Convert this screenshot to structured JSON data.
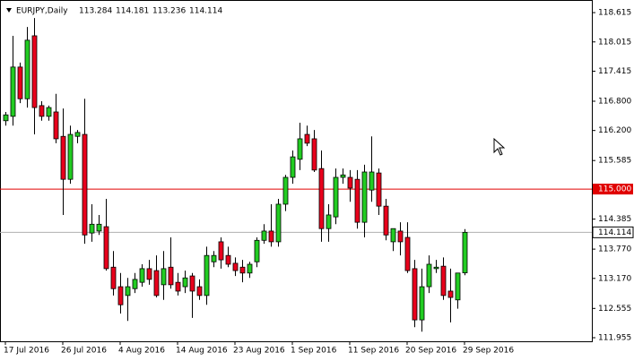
{
  "chart_data": {
    "type": "candlestick",
    "symbol": "EURJPY,Daily",
    "categories": [
      "17 Jul 2016",
      null,
      null,
      null,
      null,
      null,
      null,
      null,
      "26 Jul 2016",
      null,
      null,
      null,
      null,
      null,
      null,
      null,
      "4 Aug 2016",
      null,
      null,
      null,
      null,
      null,
      null,
      null,
      "14 Aug 2016",
      null,
      null,
      null,
      null,
      null,
      null,
      null,
      "23 Aug 2016",
      null,
      null,
      null,
      null,
      null,
      null,
      null,
      "1 Sep 2016",
      null,
      null,
      null,
      null,
      null,
      null,
      null,
      "11 Sep 2016",
      null,
      null,
      null,
      null,
      null,
      null,
      null,
      "20 Sep 2016",
      null,
      null,
      null,
      null,
      null,
      null,
      null,
      "29 Sep 2016"
    ],
    "open": [
      116.4,
      116.49,
      117.5,
      116.85,
      118.14,
      116.71,
      116.49,
      116.58,
      116.08,
      115.2,
      116.08,
      116.12,
      114.1,
      114.14,
      114.23,
      113.4,
      113.0,
      112.82,
      112.96,
      113.09,
      113.37,
      113.33,
      113.04,
      113.4,
      113.09,
      113.0,
      113.22,
      113.0,
      112.82,
      113.51,
      113.92,
      113.64,
      113.48,
      113.4,
      113.28,
      113.51,
      113.95,
      114.14,
      113.92,
      114.69,
      115.24,
      115.61,
      116.12,
      116.03,
      115.42,
      114.19,
      114.43,
      115.24,
      115.24,
      115.2,
      114.32,
      114.98,
      115.33,
      114.65,
      113.92,
      114.14,
      114.01,
      113.37,
      112.32,
      113.0,
      113.37,
      113.42,
      112.91,
      112.73,
      113.284
    ],
    "high": [
      116.58,
      118.14,
      117.59,
      118.32,
      118.505,
      116.8,
      116.71,
      116.95,
      116.65,
      116.3,
      116.21,
      116.85,
      114.69,
      114.47,
      114.8,
      113.73,
      113.28,
      113.18,
      113.28,
      113.46,
      113.55,
      113.64,
      113.73,
      114.01,
      113.28,
      113.33,
      113.28,
      113.15,
      113.82,
      113.73,
      114.01,
      113.82,
      113.6,
      113.55,
      113.51,
      114.01,
      114.28,
      114.69,
      114.8,
      115.29,
      115.79,
      116.36,
      116.3,
      116.21,
      115.79,
      114.69,
      115.42,
      115.42,
      115.39,
      115.39,
      115.5,
      116.08,
      115.42,
      114.8,
      114.19,
      114.32,
      114.32,
      113.55,
      113.37,
      113.64,
      113.55,
      113.6,
      113.37,
      113.28,
      114.181
    ],
    "low": [
      116.3,
      116.3,
      116.76,
      116.67,
      116.12,
      116.4,
      116.4,
      115.94,
      114.47,
      115.11,
      115.94,
      113.88,
      113.92,
      114.06,
      113.33,
      112.82,
      112.45,
      112.3,
      112.87,
      113.0,
      113.04,
      112.78,
      112.73,
      112.96,
      112.82,
      112.87,
      112.36,
      112.73,
      112.63,
      113.4,
      113.37,
      113.4,
      113.22,
      113.09,
      113.18,
      113.4,
      113.88,
      113.82,
      113.82,
      114.55,
      115.11,
      115.39,
      115.88,
      115.35,
      113.92,
      113.92,
      114.28,
      115.11,
      114.74,
      114.19,
      114.01,
      114.74,
      114.47,
      113.95,
      113.73,
      113.64,
      113.28,
      112.17,
      112.08,
      112.87,
      113.28,
      112.73,
      112.27,
      112.55,
      113.236
    ],
    "close": [
      116.52,
      117.5,
      116.85,
      118.05,
      116.67,
      116.49,
      116.67,
      116.03,
      115.2,
      116.12,
      116.16,
      114.06,
      114.28,
      114.28,
      113.37,
      112.96,
      112.63,
      113.0,
      113.15,
      113.37,
      113.15,
      112.82,
      113.37,
      113.04,
      112.91,
      113.18,
      112.91,
      112.82,
      113.64,
      113.64,
      113.55,
      113.46,
      113.33,
      113.28,
      113.46,
      113.95,
      114.14,
      113.92,
      114.69,
      115.24,
      115.66,
      116.03,
      115.94,
      115.39,
      114.19,
      114.47,
      115.24,
      115.29,
      115.02,
      114.32,
      115.35,
      115.35,
      114.65,
      114.06,
      114.19,
      113.92,
      113.33,
      112.32,
      113.0,
      113.46,
      113.4,
      112.82,
      112.78,
      113.28,
      114.114
    ],
    "up_color": "#22cc22",
    "down_color": "#e8001c",
    "ylim": [
      111.9,
      118.8
    ],
    "yticks": [
      118.615,
      118.015,
      117.415,
      {
        "value": 116.8,
        "label": "116.800"
      },
      {
        "value": 116.2,
        "label": "116.200"
      },
      115.585,
      114.385,
      {
        "value": 113.77,
        "label": "113.770"
      },
      {
        "value": 113.17,
        "label": "113.170"
      },
      112.555,
      111.955
    ],
    "level": {
      "value": 115,
      "label": "115.000",
      "color": "#e00000"
    }
  }
}
